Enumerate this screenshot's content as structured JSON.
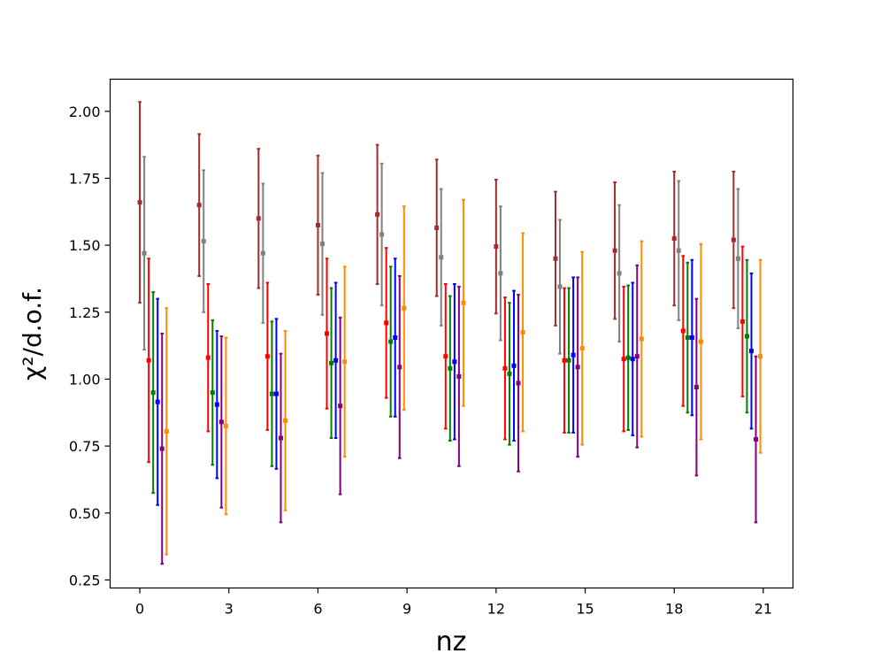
{
  "chart_data": {
    "type": "scatter",
    "subtype": "errorbar",
    "title": "",
    "xlabel": "nz",
    "ylabel": "χ²/d.o.f.",
    "xlim": [
      -1.0,
      22.0
    ],
    "ylim": [
      0.22,
      2.12
    ],
    "xticks": [
      0,
      3,
      6,
      9,
      12,
      15,
      18,
      21
    ],
    "yticks": [
      0.25,
      0.5,
      0.75,
      1.0,
      1.25,
      1.5,
      1.75,
      2.0
    ],
    "ytick_labels": [
      "0.25",
      "0.50",
      "0.75",
      "1.00",
      "1.25",
      "1.50",
      "1.75",
      "2.00"
    ],
    "grid": false,
    "legend": null,
    "groups_x": [
      0,
      2,
      4,
      6,
      8,
      10,
      12,
      14,
      16,
      18,
      20
    ],
    "series_offsets": [
      0.0,
      0.15,
      0.3,
      0.45,
      0.6,
      0.75,
      0.9
    ],
    "series": [
      {
        "color": "#a52a2a",
        "values": [
          1.66,
          1.65,
          1.6,
          1.575,
          1.615,
          1.565,
          1.495,
          1.45,
          1.48,
          1.525,
          1.52
        ],
        "err": [
          0.375,
          0.265,
          0.26,
          0.26,
          0.26,
          0.255,
          0.25,
          0.25,
          0.255,
          0.25,
          0.255
        ]
      },
      {
        "color": "#808080",
        "values": [
          1.47,
          1.515,
          1.47,
          1.505,
          1.54,
          1.455,
          1.395,
          1.345,
          1.395,
          1.48,
          1.45
        ],
        "err": [
          0.36,
          0.265,
          0.26,
          0.265,
          0.265,
          0.255,
          0.25,
          0.25,
          0.255,
          0.26,
          0.26
        ]
      },
      {
        "color": "#ff0000",
        "values": [
          1.07,
          1.08,
          1.085,
          1.17,
          1.21,
          1.085,
          1.04,
          1.07,
          1.075,
          1.18,
          1.215
        ],
        "err": [
          0.38,
          0.275,
          0.275,
          0.28,
          0.28,
          0.27,
          0.265,
          0.27,
          0.27,
          0.28,
          0.28
        ]
      },
      {
        "color": "#008000",
        "values": [
          0.95,
          0.95,
          0.945,
          1.06,
          1.14,
          1.04,
          1.02,
          1.07,
          1.08,
          1.155,
          1.16
        ],
        "err": [
          0.375,
          0.27,
          0.27,
          0.28,
          0.28,
          0.27,
          0.265,
          0.27,
          0.27,
          0.28,
          0.285
        ]
      },
      {
        "color": "#0000ff",
        "values": [
          0.915,
          0.905,
          0.945,
          1.07,
          1.155,
          1.065,
          1.05,
          1.09,
          1.075,
          1.155,
          1.105
        ],
        "err": [
          0.385,
          0.275,
          0.28,
          0.29,
          0.295,
          0.29,
          0.28,
          0.29,
          0.285,
          0.29,
          0.29
        ]
      },
      {
        "color": "#800080",
        "values": [
          0.74,
          0.84,
          0.78,
          0.9,
          1.045,
          1.01,
          0.985,
          1.045,
          1.085,
          0.97,
          0.775
        ],
        "err": [
          0.43,
          0.32,
          0.315,
          0.33,
          0.34,
          0.335,
          0.33,
          0.335,
          0.34,
          0.33,
          0.31
        ]
      },
      {
        "color": "#ff8c00",
        "values": [
          0.805,
          0.825,
          0.845,
          1.065,
          1.265,
          1.285,
          1.175,
          1.115,
          1.15,
          1.14,
          1.085
        ],
        "err": [
          0.46,
          0.33,
          0.335,
          0.355,
          0.38,
          0.385,
          0.37,
          0.36,
          0.365,
          0.365,
          0.36
        ]
      }
    ]
  }
}
